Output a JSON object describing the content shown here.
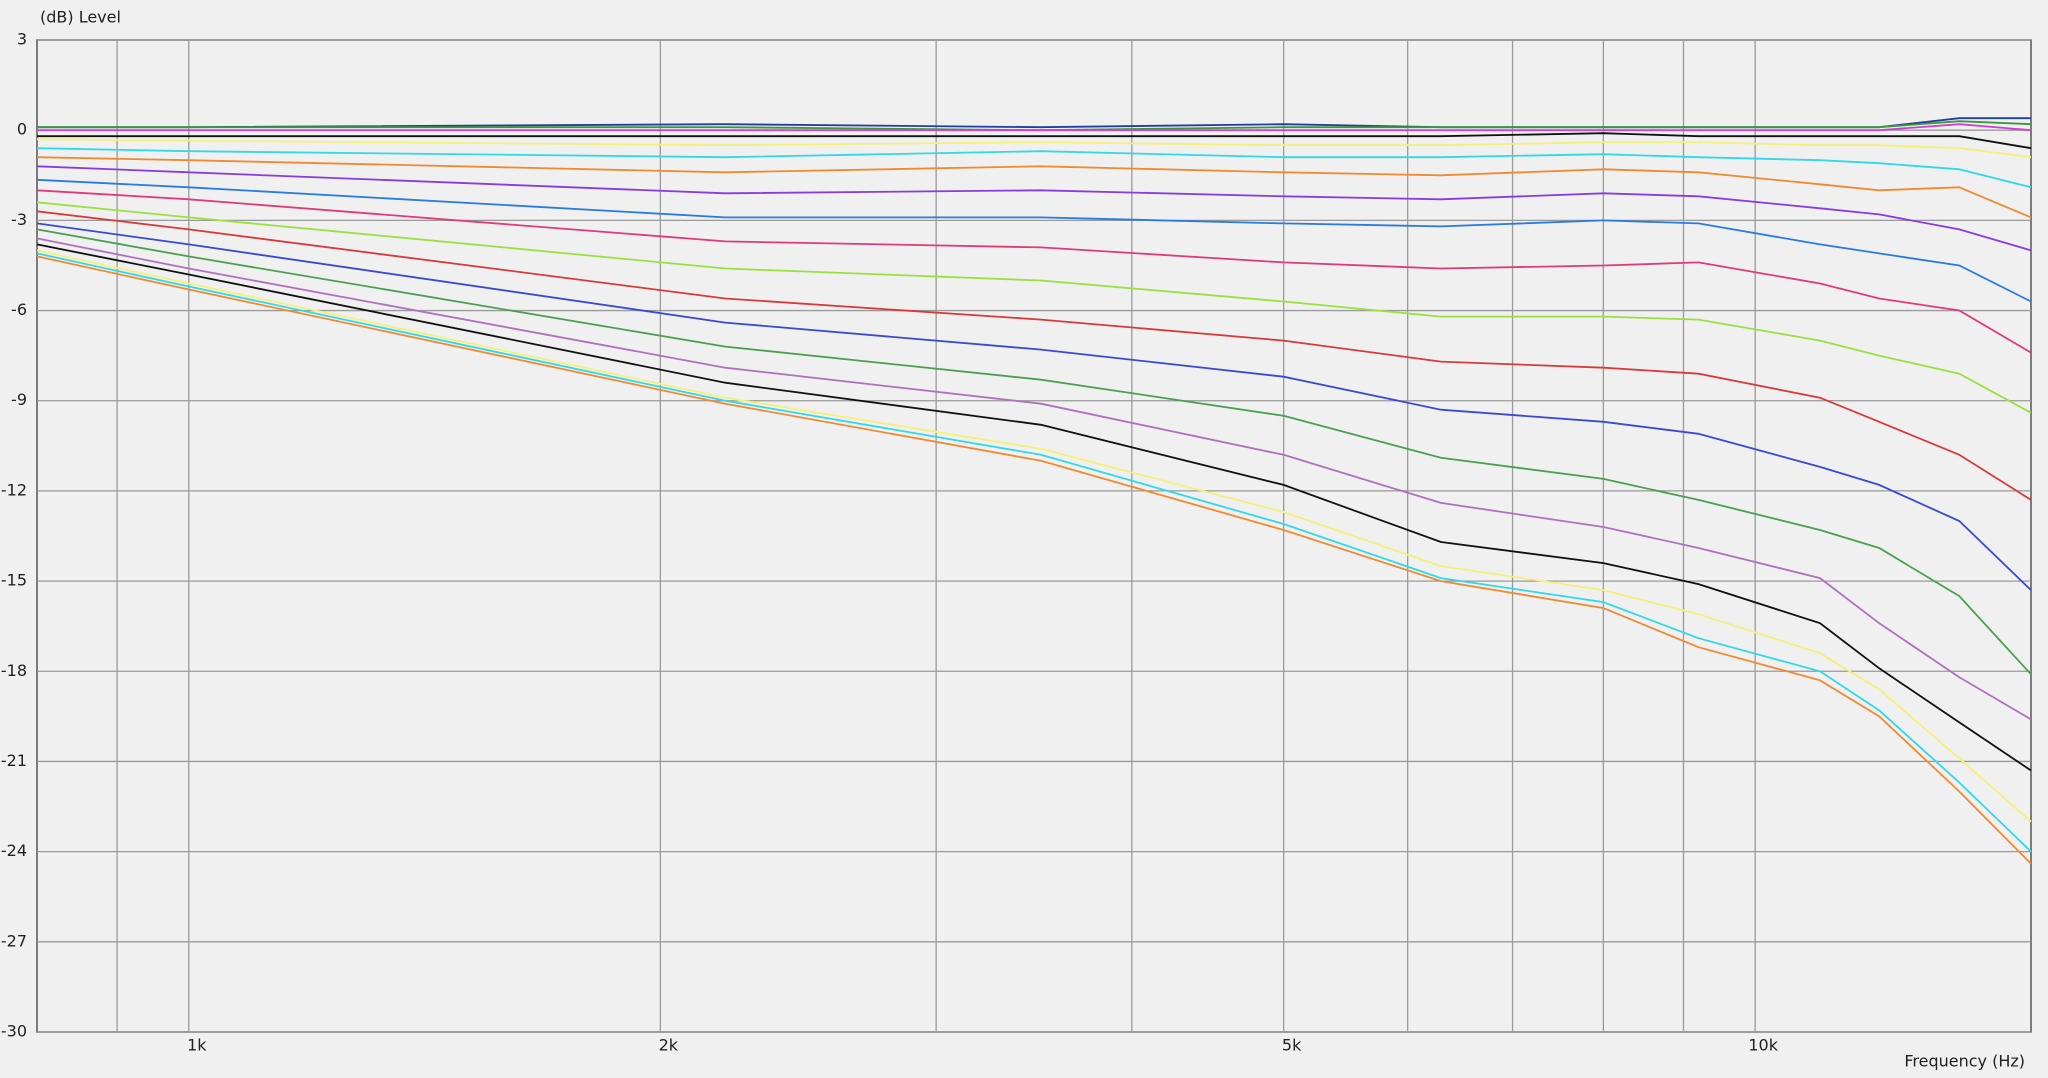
{
  "chart_data": {
    "type": "line",
    "log_x": true,
    "grid": true,
    "ylabel": "(dB)  Level",
    "xlabel": "Frequency  (Hz)",
    "x": [
      800,
      1000,
      2200,
      3500,
      5000,
      6300,
      8000,
      9200,
      11000,
      12000,
      13500,
      15000
    ],
    "xlim": [
      800,
      15000
    ],
    "xticks": [
      {
        "value": 1000,
        "label": "1k"
      },
      {
        "value": 2000,
        "label": "2k"
      },
      {
        "value": 5000,
        "label": "5k"
      },
      {
        "value": 10000,
        "label": "10k"
      }
    ],
    "xminor": [
      900,
      3000,
      4000,
      6000,
      7000,
      8000,
      9000
    ],
    "ylim": [
      -30,
      3
    ],
    "yticks": [
      3,
      0,
      -3,
      -6,
      -9,
      -12,
      -15,
      -18,
      -21,
      -24,
      -27,
      -30
    ],
    "series": [
      {
        "color": "#1f3f9f",
        "values": [
          0.1,
          0.1,
          0.2,
          0.1,
          0.2,
          0.1,
          0.1,
          0.1,
          0.1,
          0.1,
          0.4,
          0.4
        ]
      },
      {
        "color": "#3a9a3a",
        "values": [
          0.1,
          0.1,
          0.1,
          0,
          0.1,
          0.1,
          0.1,
          0.1,
          0.1,
          0.1,
          0.3,
          0.2
        ]
      },
      {
        "color": "#d040d0",
        "values": [
          0,
          0,
          0,
          0,
          0,
          0,
          0,
          0,
          0,
          0,
          0.2,
          0
        ]
      },
      {
        "color": "#111111",
        "values": [
          -0.2,
          -0.2,
          -0.2,
          -0.2,
          -0.2,
          -0.2,
          -0.1,
          -0.2,
          -0.2,
          -0.2,
          -0.2,
          -0.6
        ]
      },
      {
        "color": "#f5f07a",
        "values": [
          -0.3,
          -0.35,
          -0.5,
          -0.4,
          -0.5,
          -0.5,
          -0.4,
          -0.4,
          -0.5,
          -0.5,
          -0.6,
          -0.9
        ]
      },
      {
        "color": "#30d8e8",
        "values": [
          -0.6,
          -0.7,
          -0.9,
          -0.7,
          -0.9,
          -0.9,
          -0.8,
          -0.9,
          -1.0,
          -1.1,
          -1.3,
          -1.9
        ]
      },
      {
        "color": "#f08a30",
        "values": [
          -0.9,
          -1.0,
          -1.4,
          -1.2,
          -1.4,
          -1.5,
          -1.3,
          -1.4,
          -1.8,
          -2.0,
          -1.9,
          -2.9
        ]
      },
      {
        "color": "#8a3ae0",
        "values": [
          -1.2,
          -1.4,
          -2.1,
          -2.0,
          -2.2,
          -2.3,
          -2.1,
          -2.2,
          -2.6,
          -2.8,
          -3.3,
          -4.0
        ]
      },
      {
        "color": "#2a7ae0",
        "values": [
          -1.65,
          -1.9,
          -2.9,
          -2.9,
          -3.1,
          -3.2,
          -3.0,
          -3.1,
          -3.8,
          -4.1,
          -4.5,
          -5.7
        ]
      },
      {
        "color": "#e03a7a",
        "values": [
          -2.0,
          -2.3,
          -3.7,
          -3.9,
          -4.4,
          -4.6,
          -4.5,
          -4.4,
          -5.1,
          -5.6,
          -6.0,
          -7.4
        ]
      },
      {
        "color": "#9ae040",
        "values": [
          -2.4,
          -2.9,
          -4.6,
          -5.0,
          -5.7,
          -6.2,
          -6.2,
          -6.3,
          -7.0,
          -7.5,
          -8.1,
          -9.4
        ]
      },
      {
        "color": "#d83a3a",
        "values": [
          -2.7,
          -3.3,
          -5.6,
          -6.3,
          -7.0,
          -7.7,
          -7.9,
          -8.1,
          -8.9,
          -9.7,
          -10.8,
          -12.3
        ]
      },
      {
        "color": "#3a4ad0",
        "values": [
          -3.1,
          -3.8,
          -6.4,
          -7.3,
          -8.2,
          -9.3,
          -9.7,
          -10.1,
          -11.2,
          -11.8,
          -13.0,
          -15.3
        ]
      },
      {
        "color": "#4aa050",
        "values": [
          -3.3,
          -4.2,
          -7.2,
          -8.3,
          -9.5,
          -10.9,
          -11.6,
          -12.3,
          -13.3,
          -13.9,
          -15.5,
          -18.1
        ]
      },
      {
        "color": "#b070c0",
        "values": [
          -3.6,
          -4.6,
          -7.9,
          -9.1,
          -10.8,
          -12.4,
          -13.2,
          -13.9,
          -14.9,
          -16.4,
          -18.2,
          -19.6
        ]
      },
      {
        "color": "#111111",
        "values": [
          -3.8,
          -4.8,
          -8.4,
          -9.8,
          -11.8,
          -13.7,
          -14.4,
          -15.1,
          -16.4,
          -17.9,
          -19.7,
          -21.3
        ]
      },
      {
        "color": "#f5f07a",
        "values": [
          -4.0,
          -5.1,
          -8.9,
          -10.6,
          -12.7,
          -14.5,
          -15.3,
          -16.1,
          -17.4,
          -18.6,
          -20.9,
          -23.0
        ]
      },
      {
        "color": "#30d8e8",
        "values": [
          -4.1,
          -5.2,
          -9.0,
          -10.8,
          -13.1,
          -14.9,
          -15.7,
          -16.9,
          -18.0,
          -19.3,
          -21.7,
          -24.0
        ]
      },
      {
        "color": "#f08a30",
        "values": [
          -4.2,
          -5.3,
          -9.1,
          -11.0,
          -13.3,
          -15.0,
          -15.9,
          -17.2,
          -18.3,
          -19.5,
          -22.0,
          -24.4
        ]
      }
    ]
  }
}
